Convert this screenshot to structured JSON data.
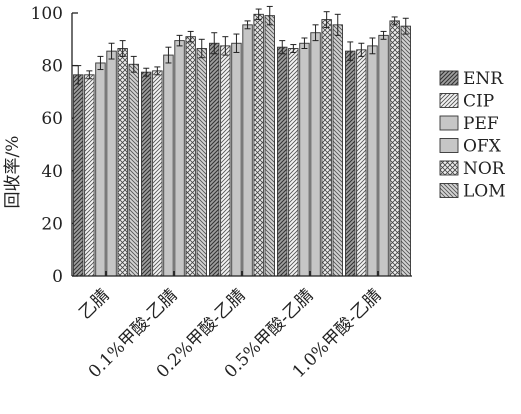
{
  "chart_data": {
    "type": "bar",
    "categories": [
      "乙腈",
      "0.1%甲酸-乙腈",
      "0.2%甲酸-乙腈",
      "0.5%甲酸-乙腈",
      "1.0%甲酸-乙腈"
    ],
    "series": [
      {
        "name": "ENR",
        "values": [
          76.5,
          77.5,
          88.5,
          87.0,
          85.5
        ],
        "errors": [
          3.5,
          1.5,
          4.0,
          2.5,
          3.5
        ],
        "pattern": "diag-dense"
      },
      {
        "name": "CIP",
        "values": [
          76.5,
          78.0,
          87.5,
          86.5,
          86.0
        ],
        "errors": [
          1.5,
          1.5,
          3.5,
          1.5,
          2.5
        ],
        "pattern": "diag-light"
      },
      {
        "name": "PEF",
        "values": [
          81.0,
          84.0,
          88.5,
          88.5,
          87.5
        ],
        "errors": [
          2.5,
          3.0,
          3.5,
          2.0,
          3.0
        ],
        "pattern": "gray"
      },
      {
        "name": "OFX",
        "values": [
          85.5,
          89.5,
          95.5,
          92.5,
          91.5
        ],
        "errors": [
          3.0,
          2.0,
          1.5,
          3.0,
          1.5
        ],
        "pattern": "gray"
      },
      {
        "name": "NOR",
        "values": [
          86.5,
          91.0,
          99.5,
          97.5,
          97.0
        ],
        "errors": [
          3.0,
          2.0,
          2.0,
          3.0,
          1.5
        ],
        "pattern": "crosshatch"
      },
      {
        "name": "LOM",
        "values": [
          80.5,
          86.5,
          99.0,
          95.5,
          95.0
        ],
        "errors": [
          3.0,
          3.5,
          3.5,
          4.0,
          3.0
        ],
        "pattern": "diag-back"
      }
    ],
    "ylabel": "回收率/%",
    "xlabel": "",
    "ylim": [
      0,
      100
    ],
    "yticks": [
      0,
      20,
      40,
      60,
      80,
      100
    ],
    "legend_position": "right",
    "grid": false
  }
}
